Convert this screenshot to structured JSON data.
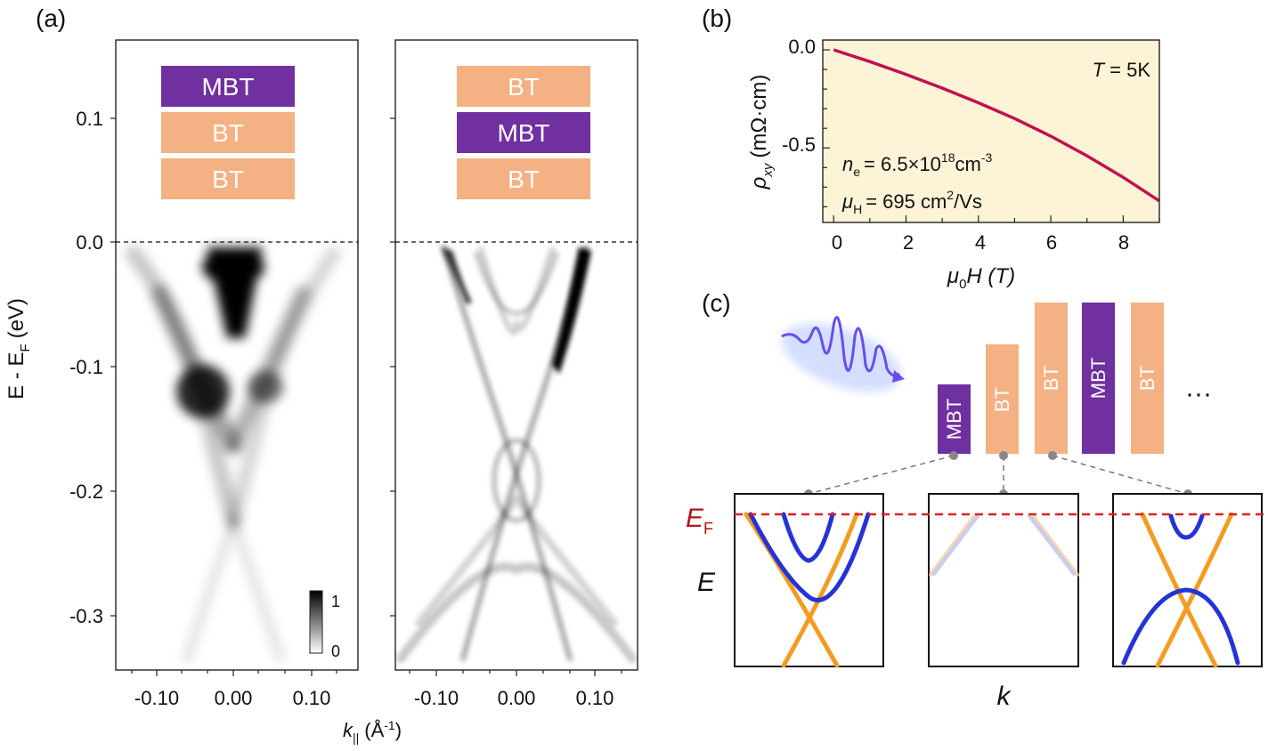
{
  "panel_labels": {
    "a": "(a)",
    "b": "(b)",
    "c": "(c)"
  },
  "colors": {
    "mbt": "#7030a0",
    "bt": "#f4b183",
    "hall_curve": "#c0114f",
    "hall_bg": "#fdf3d6",
    "band_blue": "#2433d6",
    "band_orange": "#f39c24",
    "fermi_line": "#e02020",
    "photon": "#6a4cf0"
  },
  "arpes": {
    "left_stack": [
      "MBT",
      "BT",
      "BT"
    ],
    "right_stack": [
      "BT",
      "MBT",
      "BT"
    ],
    "y_axis_label_main": "E - E",
    "y_axis_label_sub": "F",
    "y_axis_label_unit": "(eV)",
    "y_ticks": [
      "0.1",
      "0.0",
      "-0.1",
      "-0.2",
      "-0.3"
    ],
    "x_ticks": [
      "-0.10",
      "0.00",
      "0.10"
    ],
    "x_label_main": "k",
    "x_label_sub": "||",
    "x_label_unit": "(Å",
    "x_label_exp": "-1",
    "x_label_close": ")",
    "colorbar_max": "1",
    "colorbar_min": "0"
  },
  "chart_data": {
    "type": "line",
    "series": [
      {
        "x": [
          0,
          1,
          2,
          3,
          4,
          5,
          6,
          7,
          8,
          9
        ],
        "y": [
          0.0,
          -0.06,
          -0.125,
          -0.195,
          -0.27,
          -0.35,
          -0.44,
          -0.54,
          -0.65,
          -0.77
        ]
      }
    ],
    "xlim": [
      -0.3,
      9
    ],
    "ylim": [
      -0.88,
      0.05
    ],
    "x_ticks": [
      "0",
      "2",
      "4",
      "6",
      "8"
    ],
    "y_ticks": [
      "0.0",
      "-0.5"
    ],
    "xlabel_main": "μ",
    "xlabel_sub": "0",
    "xlabel_rest": "H (T)",
    "ylabel_main": "ρ",
    "ylabel_sub": "xy",
    "ylabel_rest": "(mΩ·cm)",
    "annotation_T": "T",
    "annotation_T_rest": "= 5K",
    "annotation_n_main": "n",
    "annotation_n_sub": "e",
    "annotation_n_rest": "= 6.5×10",
    "annotation_n_exp": "18",
    "annotation_n_unit": "cm",
    "annotation_n_unit_exp": "-3",
    "annotation_mu_main": "μ",
    "annotation_mu_sub": "H",
    "annotation_mu_rest": "= 695 cm",
    "annotation_mu_exp": "2",
    "annotation_mu_unit": "/Vs"
  },
  "panel_c": {
    "layers": [
      "MBT",
      "BT",
      "BT",
      "MBT",
      "BT"
    ],
    "ellipsis": "···",
    "fermi_main": "E",
    "fermi_sub": "F",
    "energy_axis": "E",
    "momentum_axis": "k"
  }
}
